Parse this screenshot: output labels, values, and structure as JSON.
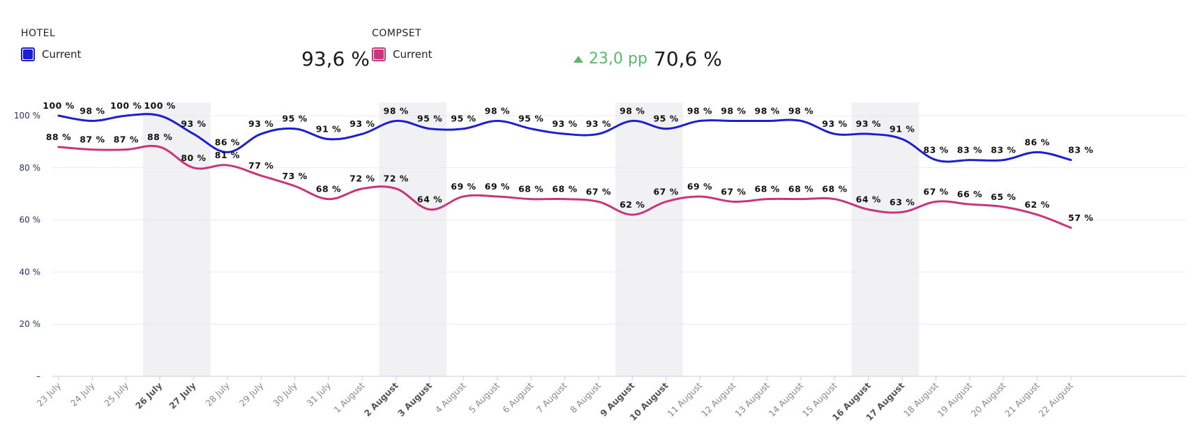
{
  "legend": {
    "hotel": {
      "title": "HOTEL",
      "label": "Current",
      "value": "93,6 %",
      "color": "#1a1fd1",
      "icon": "square-swatch-icon"
    },
    "compset": {
      "title": "COMPSET",
      "label": "Current",
      "value": "70,6 %",
      "color": "#c8357c",
      "icon": "square-swatch-icon"
    },
    "delta": {
      "text": "23,0 pp",
      "icon": "triangle-up-icon",
      "color": "#5cb86a"
    }
  },
  "chart_data": {
    "type": "line",
    "categories": [
      "23 July",
      "24 July",
      "25 July",
      "26 July",
      "27 July",
      "28 July",
      "29 July",
      "30 July",
      "31 July",
      "1 August",
      "2 August",
      "3 August",
      "4 August",
      "5 August",
      "6 August",
      "7 August",
      "8 August",
      "9 August",
      "10 August",
      "11 August",
      "12 August",
      "13 August",
      "14 August",
      "15 August",
      "16 August",
      "17 August",
      "18 August",
      "19 August",
      "20 August",
      "21 August",
      "22 August"
    ],
    "bold_categories": [
      "26 July",
      "27 July",
      "2 August",
      "3 August",
      "9 August",
      "10 August",
      "16 August",
      "17 August"
    ],
    "highlight_ranges": [
      [
        "26 July",
        "27 July"
      ],
      [
        "2 August",
        "3 August"
      ],
      [
        "9 August",
        "10 August"
      ],
      [
        "16 August",
        "17 August"
      ]
    ],
    "series": [
      {
        "name": "Current",
        "color": "#1a1fd1",
        "values": [
          100,
          98,
          100,
          100,
          93,
          86,
          93,
          95,
          91,
          93,
          98,
          95,
          95,
          98,
          95,
          93,
          93,
          98,
          95,
          98,
          98,
          98,
          98,
          93,
          93,
          91,
          83,
          83,
          83,
          86,
          83
        ]
      },
      {
        "name": "Current",
        "color": "#c8357c",
        "values": [
          88,
          87,
          87,
          88,
          80,
          81,
          77,
          73,
          68,
          72,
          72,
          64,
          69,
          69,
          68,
          68,
          67,
          62,
          67,
          69,
          67,
          68,
          68,
          68,
          64,
          63,
          67,
          66,
          65,
          62,
          57
        ]
      }
    ],
    "value_suffix": " %",
    "yticks": [
      "100 %",
      "80 %",
      "60 %",
      "40 %",
      "20 %",
      "–"
    ],
    "ylim": [
      0,
      100
    ],
    "grid": true
  }
}
